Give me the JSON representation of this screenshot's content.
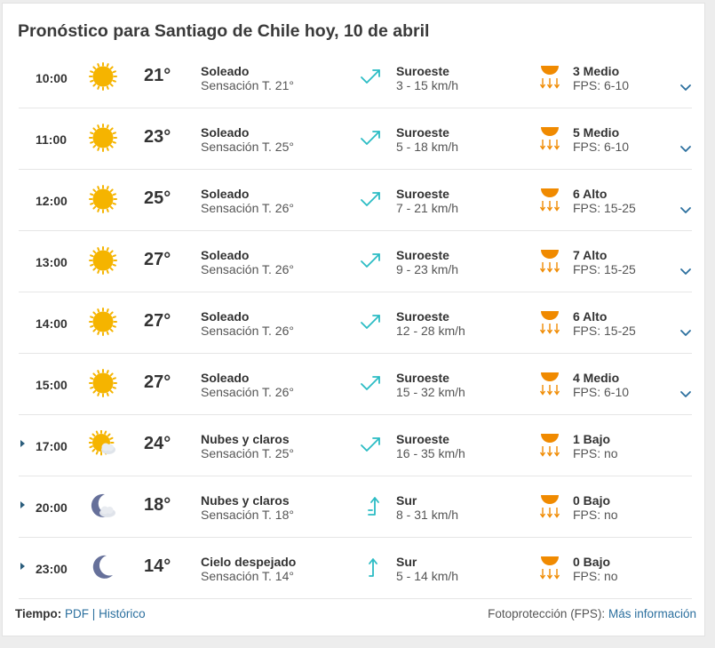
{
  "title": "Pronóstico para Santiago de Chile hoy, 10 de abril",
  "colors": {
    "sun": "#f5b400",
    "wind": "#2bbcc4",
    "uv": "#f08a00",
    "link": "#2b6f9e",
    "moon": "#66709a"
  },
  "rows": [
    {
      "time": "10:00",
      "sky_icon": "sun-icon",
      "temp": "21°",
      "condition": "Soleado",
      "feels": "Sensación T. 21°",
      "wind_icon": "wind-southwest-icon",
      "wind_dir": "Suroeste",
      "wind_speed": "3 - 15 km/h",
      "uv": "3 Medio",
      "fps": "FPS: 6-10",
      "has_chevron": true
    },
    {
      "time": "11:00",
      "sky_icon": "sun-icon",
      "temp": "23°",
      "condition": "Soleado",
      "feels": "Sensación T. 25°",
      "wind_icon": "wind-southwest-icon",
      "wind_dir": "Suroeste",
      "wind_speed": "5 - 18 km/h",
      "uv": "5 Medio",
      "fps": "FPS: 6-10",
      "has_chevron": true
    },
    {
      "time": "12:00",
      "sky_icon": "sun-icon",
      "temp": "25°",
      "condition": "Soleado",
      "feels": "Sensación T. 26°",
      "wind_icon": "wind-southwest-icon",
      "wind_dir": "Suroeste",
      "wind_speed": "7 - 21 km/h",
      "uv": "6 Alto",
      "fps": "FPS: 15-25",
      "has_chevron": true
    },
    {
      "time": "13:00",
      "sky_icon": "sun-icon",
      "temp": "27°",
      "condition": "Soleado",
      "feels": "Sensación T. 26°",
      "wind_icon": "wind-southwest-icon",
      "wind_dir": "Suroeste",
      "wind_speed": "9 - 23 km/h",
      "uv": "7 Alto",
      "fps": "FPS: 15-25",
      "has_chevron": true
    },
    {
      "time": "14:00",
      "sky_icon": "sun-icon",
      "temp": "27°",
      "condition": "Soleado",
      "feels": "Sensación T. 26°",
      "wind_icon": "wind-southwest-icon",
      "wind_dir": "Suroeste",
      "wind_speed": "12 - 28 km/h",
      "uv": "6 Alto",
      "fps": "FPS: 15-25",
      "has_chevron": true
    },
    {
      "time": "15:00",
      "sky_icon": "sun-icon",
      "temp": "27°",
      "condition": "Soleado",
      "feels": "Sensación T. 26°",
      "wind_icon": "wind-southwest-icon",
      "wind_dir": "Suroeste",
      "wind_speed": "15 - 32 km/h",
      "uv": "4 Medio",
      "fps": "FPS: 6-10",
      "has_chevron": true
    },
    {
      "time": "17:00",
      "sky_icon": "sun-cloud-icon",
      "temp": "24°",
      "condition": "Nubes y claros",
      "feels": "Sensación T. 25°",
      "wind_icon": "wind-southwest-icon",
      "wind_dir": "Suroeste",
      "wind_speed": "16 - 35 km/h",
      "uv": "1 Bajo",
      "fps": "FPS: no",
      "has_expand": true
    },
    {
      "time": "20:00",
      "sky_icon": "moon-cloud-icon",
      "temp": "18°",
      "condition": "Nubes y claros",
      "feels": "Sensación T. 18°",
      "wind_icon": "wind-south-strong-icon",
      "wind_dir": "Sur",
      "wind_speed": "8 - 31 km/h",
      "uv": "0 Bajo",
      "fps": "FPS: no",
      "has_expand": true
    },
    {
      "time": "23:00",
      "sky_icon": "moon-icon",
      "temp": "14°",
      "condition": "Cielo despejado",
      "feels": "Sensación T. 14°",
      "wind_icon": "wind-south-icon",
      "wind_dir": "Sur",
      "wind_speed": "5 - 14 km/h",
      "uv": "0 Bajo",
      "fps": "FPS: no",
      "has_expand": true
    }
  ],
  "footer": {
    "tiempo_label": "Tiempo:",
    "pdf_link": "PDF",
    "separator": "|",
    "historico_link": "Histórico",
    "fps_label": "Fotoprotección (FPS):",
    "more_info_link": "Más información"
  }
}
